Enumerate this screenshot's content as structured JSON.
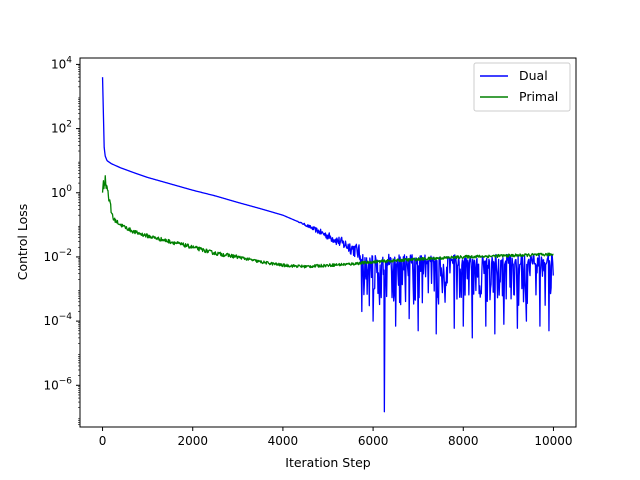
{
  "chart_data": {
    "type": "line",
    "xlabel": "Iteration Step",
    "ylabel": "Control Loss",
    "xlim": [
      -500,
      10500
    ],
    "ylim_log10": [
      -7.3,
      4.2
    ],
    "y_scale": "log",
    "grid": false,
    "legend_position": "top-right",
    "x_ticks": [
      {
        "value": 0,
        "label": "0"
      },
      {
        "value": 2000,
        "label": "2000"
      },
      {
        "value": 4000,
        "label": "4000"
      },
      {
        "value": 6000,
        "label": "6000"
      },
      {
        "value": 8000,
        "label": "8000"
      },
      {
        "value": 10000,
        "label": "10000"
      }
    ],
    "y_ticks": [
      {
        "exp": 4,
        "base": "10",
        "sup": "4"
      },
      {
        "exp": 2,
        "base": "10",
        "sup": "2"
      },
      {
        "exp": 0,
        "base": "10",
        "sup": "0"
      },
      {
        "exp": -2,
        "base": "10",
        "sup": "−2"
      },
      {
        "exp": -4,
        "base": "10",
        "sup": "−4"
      },
      {
        "exp": -6,
        "base": "10",
        "sup": "−6"
      }
    ],
    "series": [
      {
        "name": "Dual",
        "color": "#0000ff",
        "trend": [
          [
            0,
            4000
          ],
          [
            50,
            15
          ],
          [
            100,
            10
          ],
          [
            200,
            8
          ],
          [
            400,
            6
          ],
          [
            700,
            4.2
          ],
          [
            1000,
            3
          ],
          [
            1500,
            1.9
          ],
          [
            2000,
            1.2
          ],
          [
            2500,
            0.8
          ],
          [
            3000,
            0.5
          ],
          [
            3500,
            0.32
          ],
          [
            4000,
            0.2
          ],
          [
            4500,
            0.1
          ],
          [
            5000,
            0.045
          ],
          [
            5500,
            0.02
          ],
          [
            5800,
            0.011
          ],
          [
            6000,
            0.006
          ],
          [
            7000,
            0.006
          ],
          [
            8000,
            0.006
          ],
          [
            9000,
            0.006
          ],
          [
            10000,
            0.006
          ]
        ],
        "noise_band": {
          "from_x": 5700,
          "upper": 0.012,
          "lower": 0.0003
        },
        "notable_dips": [
          [
            5750,
            0.0002
          ],
          [
            6000,
            0.0001
          ],
          [
            6250,
            1.5e-07
          ],
          [
            6500,
            7e-05
          ],
          [
            6800,
            0.00012
          ],
          [
            7000,
            5e-05
          ],
          [
            7400,
            4e-05
          ],
          [
            7800,
            6e-05
          ],
          [
            8000,
            7e-05
          ],
          [
            8200,
            3e-05
          ],
          [
            8500,
            7e-05
          ],
          [
            8700,
            4e-05
          ],
          [
            8900,
            8e-05
          ],
          [
            9200,
            6e-05
          ],
          [
            9400,
            0.0001
          ],
          [
            9700,
            7e-05
          ],
          [
            9900,
            5e-05
          ]
        ]
      },
      {
        "name": "Primal",
        "color": "#008000",
        "trend": [
          [
            0,
            1.5
          ],
          [
            60,
            2.5
          ],
          [
            120,
            1.2
          ],
          [
            180,
            0.3
          ],
          [
            250,
            0.15
          ],
          [
            400,
            0.1
          ],
          [
            700,
            0.06
          ],
          [
            1000,
            0.045
          ],
          [
            1500,
            0.03
          ],
          [
            2000,
            0.02
          ],
          [
            2500,
            0.013
          ],
          [
            3000,
            0.01
          ],
          [
            3500,
            0.007
          ],
          [
            4000,
            0.0055
          ],
          [
            4500,
            0.005
          ],
          [
            5000,
            0.0055
          ],
          [
            5500,
            0.006
          ],
          [
            6000,
            0.007
          ],
          [
            7000,
            0.0085
          ],
          [
            8000,
            0.01
          ],
          [
            9000,
            0.011
          ],
          [
            10000,
            0.012
          ]
        ]
      }
    ]
  }
}
